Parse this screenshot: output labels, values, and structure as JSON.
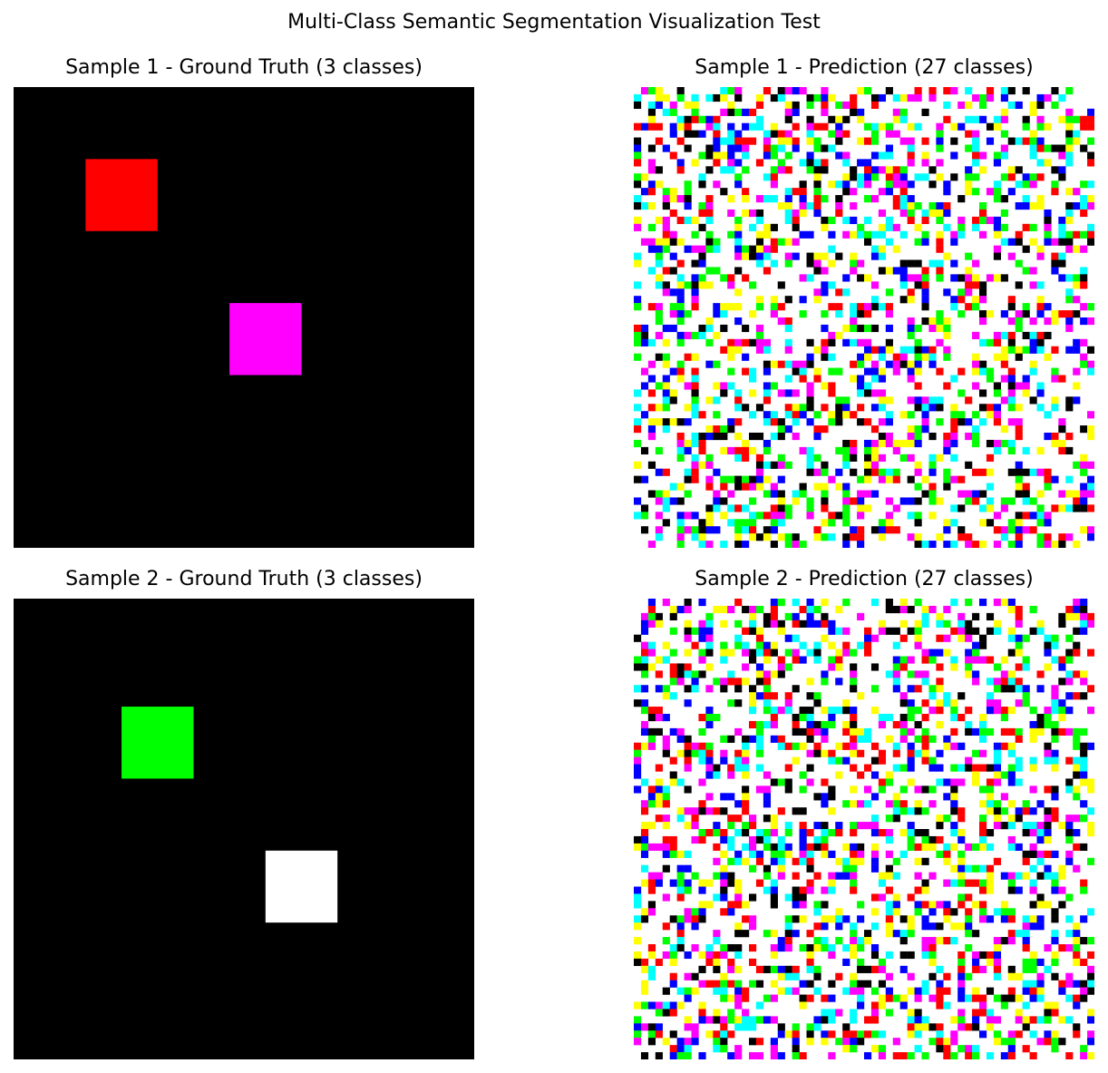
{
  "figure": {
    "title": "Multi-Class Semantic Segmentation Visualization Test"
  },
  "colors": {
    "black": "#000000",
    "red": "#ff0000",
    "green": "#00ff00",
    "blue": "#0000ff",
    "magenta": "#ff00ff",
    "cyan": "#00ffff",
    "yellow": "#ffff00",
    "white": "#ffffff"
  },
  "chart_data": [
    {
      "type": "heatmap",
      "title": "Sample 1 - Ground Truth (3 classes)",
      "grid_size": 64,
      "background": "black",
      "axes": "off",
      "regions": [
        {
          "label": "red",
          "color": "#ff0000",
          "rows": [
            10,
            19
          ],
          "cols": [
            10,
            19
          ]
        },
        {
          "label": "magenta",
          "color": "#ff00ff",
          "rows": [
            30,
            39
          ],
          "cols": [
            30,
            39
          ]
        }
      ]
    },
    {
      "type": "heatmap",
      "title": "Sample 1 - Prediction (27 classes)",
      "grid_size": 64,
      "background": "white",
      "axes": "off",
      "pattern": "random per-pixel class noise",
      "palette": [
        "#000000",
        "#ff0000",
        "#00ff00",
        "#0000ff",
        "#ff00ff",
        "#00ffff",
        "#ffff00"
      ],
      "noise_density": 0.42
    },
    {
      "type": "heatmap",
      "title": "Sample 2 - Ground Truth (3 classes)",
      "grid_size": 64,
      "background": "black",
      "axes": "off",
      "regions": [
        {
          "label": "green",
          "color": "#00ff00",
          "rows": [
            15,
            24
          ],
          "cols": [
            15,
            24
          ]
        },
        {
          "label": "white",
          "color": "#ffffff",
          "rows": [
            35,
            44
          ],
          "cols": [
            35,
            44
          ]
        }
      ]
    },
    {
      "type": "heatmap",
      "title": "Sample 2 - Prediction (27 classes)",
      "grid_size": 64,
      "background": "white",
      "axes": "off",
      "pattern": "random per-pixel class noise",
      "palette": [
        "#000000",
        "#ff0000",
        "#00ff00",
        "#0000ff",
        "#ff00ff",
        "#00ffff",
        "#ffff00"
      ],
      "noise_density": 0.42
    }
  ]
}
